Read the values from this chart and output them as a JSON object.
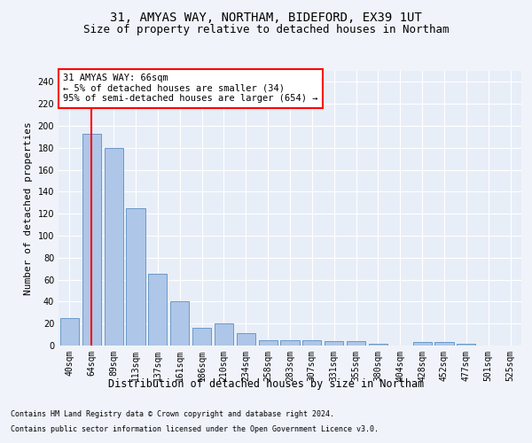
{
  "title1": "31, AMYAS WAY, NORTHAM, BIDEFORD, EX39 1UT",
  "title2": "Size of property relative to detached houses in Northam",
  "xlabel": "Distribution of detached houses by size in Northam",
  "ylabel": "Number of detached properties",
  "bar_labels": [
    "40sqm",
    "64sqm",
    "89sqm",
    "113sqm",
    "137sqm",
    "161sqm",
    "186sqm",
    "210sqm",
    "234sqm",
    "258sqm",
    "283sqm",
    "307sqm",
    "331sqm",
    "355sqm",
    "380sqm",
    "404sqm",
    "428sqm",
    "452sqm",
    "477sqm",
    "501sqm",
    "525sqm"
  ],
  "bar_values": [
    25,
    193,
    180,
    125,
    65,
    40,
    16,
    20,
    11,
    5,
    5,
    5,
    4,
    4,
    2,
    0,
    3,
    3,
    2,
    0,
    0
  ],
  "bar_color": "#aec6e8",
  "bar_edge_color": "#5a8fc2",
  "annotation_line1": "31 AMYAS WAY: 66sqm",
  "annotation_line2": "← 5% of detached houses are smaller (34)",
  "annotation_line3": "95% of semi-detached houses are larger (654) →",
  "redline_x": 1,
  "ylim": [
    0,
    250
  ],
  "yticks": [
    0,
    20,
    40,
    60,
    80,
    100,
    120,
    140,
    160,
    180,
    200,
    220,
    240
  ],
  "footer1": "Contains HM Land Registry data © Crown copyright and database right 2024.",
  "footer2": "Contains public sector information licensed under the Open Government Licence v3.0.",
  "bg_color": "#f0f4fa",
  "plot_bg_color": "#e8eef8",
  "grid_color": "#ffffff",
  "title1_fontsize": 10,
  "title2_fontsize": 9,
  "annotation_fontsize": 7.5,
  "ylabel_fontsize": 8,
  "xlabel_fontsize": 8.5,
  "tick_fontsize": 7,
  "footer_fontsize": 6
}
